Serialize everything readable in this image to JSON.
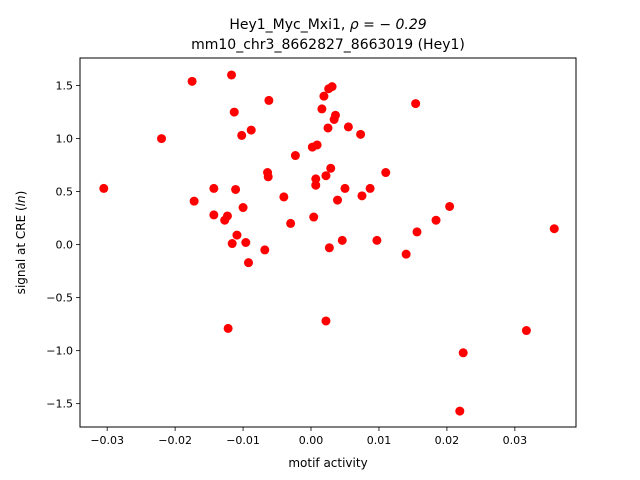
{
  "chart_data": {
    "type": "scatter",
    "title_line1": "Hey1_Myc_Mxi1, ",
    "title_rho": "ρ = − 0.29",
    "title_line2": "mm10_chr3_8662827_8663019 (Hey1)",
    "xlabel": "motif activity",
    "ylabel_prefix": "signal at CRE (",
    "ylabel_italic": "ln",
    "ylabel_suffix": ")",
    "xlim": [
      -0.034,
      0.039
    ],
    "ylim": [
      -1.72,
      1.76
    ],
    "xticks": [
      -0.03,
      -0.02,
      -0.01,
      0.0,
      0.01,
      0.02,
      0.03
    ],
    "xtick_labels": [
      "−0.03",
      "−0.02",
      "−0.01",
      "0.00",
      "0.01",
      "0.02",
      "0.03"
    ],
    "yticks": [
      -1.5,
      -1.0,
      -0.5,
      0.0,
      0.5,
      1.0,
      1.5
    ],
    "ytick_labels": [
      "−1.5",
      "−1.0",
      "−0.5",
      "0.0",
      "0.5",
      "1.0",
      "1.5"
    ],
    "marker_color": "#ff0000",
    "grid": false,
    "points": [
      {
        "x": -0.0305,
        "y": 0.53
      },
      {
        "x": -0.022,
        "y": 1.0
      },
      {
        "x": -0.0175,
        "y": 1.54
      },
      {
        "x": -0.0172,
        "y": 0.41
      },
      {
        "x": -0.0143,
        "y": 0.53
      },
      {
        "x": -0.0143,
        "y": 0.28
      },
      {
        "x": -0.0127,
        "y": 0.23
      },
      {
        "x": -0.0123,
        "y": 0.27
      },
      {
        "x": -0.0122,
        "y": -0.79
      },
      {
        "x": -0.0117,
        "y": 1.6
      },
      {
        "x": -0.0116,
        "y": 0.01
      },
      {
        "x": -0.0113,
        "y": 1.25
      },
      {
        "x": -0.0111,
        "y": 0.52
      },
      {
        "x": -0.0109,
        "y": 0.09
      },
      {
        "x": -0.0102,
        "y": 1.03
      },
      {
        "x": -0.01,
        "y": 0.35
      },
      {
        "x": -0.0096,
        "y": 0.02
      },
      {
        "x": -0.0092,
        "y": -0.17
      },
      {
        "x": -0.0088,
        "y": 1.08
      },
      {
        "x": -0.0068,
        "y": -0.05
      },
      {
        "x": -0.0064,
        "y": 0.68
      },
      {
        "x": -0.0063,
        "y": 0.64
      },
      {
        "x": -0.0062,
        "y": 1.36
      },
      {
        "x": -0.004,
        "y": 0.45
      },
      {
        "x": -0.003,
        "y": 0.2
      },
      {
        "x": -0.0023,
        "y": 0.84
      },
      {
        "x": 0.0002,
        "y": 0.92
      },
      {
        "x": 0.0004,
        "y": 0.26
      },
      {
        "x": 0.0007,
        "y": 0.62
      },
      {
        "x": 0.0007,
        "y": 0.56
      },
      {
        "x": 0.0009,
        "y": 0.94
      },
      {
        "x": 0.0016,
        "y": 1.28
      },
      {
        "x": 0.0019,
        "y": 1.4
      },
      {
        "x": 0.0022,
        "y": -0.72
      },
      {
        "x": 0.0022,
        "y": 0.65
      },
      {
        "x": 0.0025,
        "y": 1.1
      },
      {
        "x": 0.0026,
        "y": 1.47
      },
      {
        "x": 0.0027,
        "y": -0.03
      },
      {
        "x": 0.0029,
        "y": 0.72
      },
      {
        "x": 0.0031,
        "y": 1.49
      },
      {
        "x": 0.0034,
        "y": 1.18
      },
      {
        "x": 0.0036,
        "y": 1.22
      },
      {
        "x": 0.0039,
        "y": 0.42
      },
      {
        "x": 0.0046,
        "y": 0.04
      },
      {
        "x": 0.005,
        "y": 0.53
      },
      {
        "x": 0.0055,
        "y": 1.11
      },
      {
        "x": 0.0073,
        "y": 1.04
      },
      {
        "x": 0.0075,
        "y": 0.46
      },
      {
        "x": 0.0087,
        "y": 0.53
      },
      {
        "x": 0.0097,
        "y": 0.04
      },
      {
        "x": 0.011,
        "y": 0.68
      },
      {
        "x": 0.014,
        "y": -0.09
      },
      {
        "x": 0.0154,
        "y": 1.33
      },
      {
        "x": 0.0156,
        "y": 0.12
      },
      {
        "x": 0.0184,
        "y": 0.23
      },
      {
        "x": 0.0204,
        "y": 0.36
      },
      {
        "x": 0.0219,
        "y": -1.57
      },
      {
        "x": 0.0224,
        "y": -1.02
      },
      {
        "x": 0.0317,
        "y": -0.81
      },
      {
        "x": 0.0358,
        "y": 0.15
      }
    ]
  }
}
